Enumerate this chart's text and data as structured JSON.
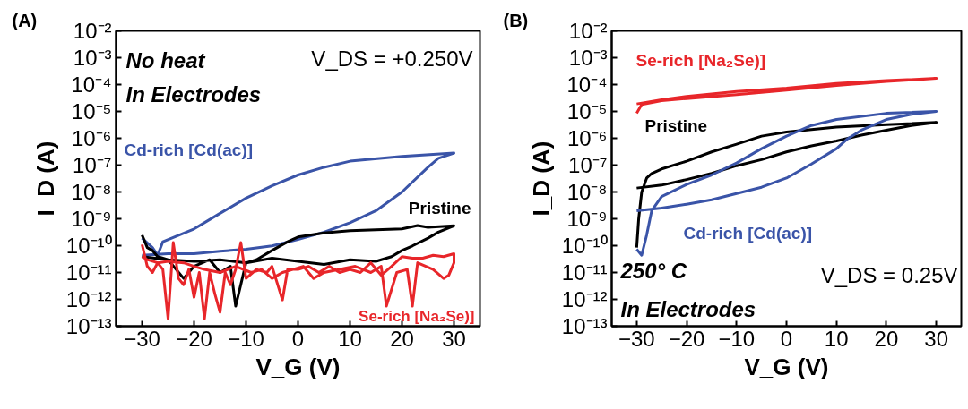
{
  "chart_data": [
    {
      "type": "line",
      "xlabel": "V_G (V)",
      "ylabel": "I_D (A)",
      "log": "y",
      "grid": false,
      "legend": false,
      "xlim": [
        -35,
        35
      ],
      "xticks": [
        -30,
        -20,
        -10,
        0,
        10,
        20,
        30
      ],
      "ylim": [
        1e-13,
        0.01
      ],
      "yticks": [
        {
          "value": 0.01,
          "label": "10⁻²"
        },
        {
          "value": 0.001,
          "label": "10⁻³"
        },
        {
          "value": 0.0001,
          "label": "10⁻⁴"
        },
        {
          "value": 1e-05,
          "label": "10⁻⁵"
        },
        {
          "value": 1e-06,
          "label": "10⁻⁶"
        },
        {
          "value": 1e-07,
          "label": "10⁻⁷"
        },
        {
          "value": 1e-08,
          "label": "10⁻⁸"
        },
        {
          "value": 1e-09,
          "label": "10⁻⁹"
        },
        {
          "value": 1e-10,
          "label": "10⁻¹⁰"
        },
        {
          "value": 1e-11,
          "label": "10⁻¹¹"
        },
        {
          "value": 1e-12,
          "label": "10⁻¹²"
        },
        {
          "value": 1e-13,
          "label": "10⁻¹³"
        }
      ],
      "annotations": [
        "(A)",
        "No heat",
        "In Electrodes",
        "V_DS = +0.250V"
      ],
      "series": [
        {
          "name": "Cd-rich [Cd(ac)]",
          "color": "#3a54a8",
          "x": [
            -30,
            -28,
            -27,
            -26,
            -20,
            -15,
            -10,
            -5,
            0,
            5,
            10,
            20,
            30,
            27,
            25,
            20,
            15,
            10,
            5,
            0,
            -5,
            -10,
            -15,
            -20,
            -25,
            -30
          ],
          "values": [
            1.9e-10,
            8.5e-11,
            4.4e-11,
            1.4e-10,
            4.2e-10,
            1.6e-09,
            5.9e-09,
            1.7e-08,
            4.3e-08,
            8.3e-08,
            1.4e-07,
            2.1e-07,
            2.8e-07,
            1.8e-07,
            8.3e-08,
            1e-08,
            2e-09,
            7.1e-10,
            3.2e-10,
            1.7e-10,
            9.8e-11,
            7.4e-11,
            6.2e-11,
            5e-11,
            5e-11,
            4.4e-11
          ]
        },
        {
          "name": "Pristine",
          "color": "#000000",
          "x": [
            -30,
            -29,
            -28,
            -27,
            -25,
            -22,
            -20,
            -17,
            -15,
            -13,
            -12,
            -10,
            -8,
            -5,
            -2,
            0,
            5,
            10,
            15,
            20,
            23,
            25,
            30,
            27,
            25,
            22,
            20,
            18,
            15,
            10,
            5,
            0,
            -5,
            -10,
            -15,
            -20,
            -25,
            -30
          ],
          "values": [
            2.5e-10,
            8.5e-11,
            6.6e-11,
            3.9e-11,
            3e-11,
            6e-12,
            1.7e-11,
            3e-11,
            1e-11,
            1.7e-11,
            5.6e-13,
            2.3e-11,
            3e-11,
            6.6e-11,
            1.4e-10,
            2.1e-10,
            3e-10,
            3.6e-10,
            3.9e-10,
            4.2e-10,
            5.6e-10,
            4.8e-10,
            5.5e-10,
            3.2e-10,
            1.9e-10,
            9.8e-11,
            6.6e-11,
            3.9e-11,
            2.6e-11,
            3e-11,
            2e-11,
            2.6e-11,
            3.4e-11,
            2.3e-11,
            3e-11,
            2.6e-11,
            3e-11,
            3.9e-11
          ]
        },
        {
          "name": "Se-rich [Na₂Se)]",
          "color": "#e8262a",
          "x": [
            -30,
            -29,
            -28,
            -27,
            -26,
            -25,
            -24,
            -23,
            -22,
            -21,
            -20,
            -19,
            -18,
            -17,
            -16,
            -15,
            -14,
            -13,
            -12,
            -11,
            -10,
            -8,
            -6,
            -5,
            -3,
            -2,
            0,
            2,
            4,
            6,
            8,
            10,
            12,
            14,
            16,
            18,
            20,
            22,
            24,
            26,
            28,
            30,
            30,
            29,
            28,
            26,
            23,
            22,
            21,
            19,
            17,
            16,
            14,
            11,
            8,
            5,
            3,
            1,
            -1,
            -3,
            -5,
            -7,
            -9,
            -12,
            -15,
            -18,
            -20,
            -22,
            -25,
            -27,
            -29,
            -30
          ],
          "values": [
            1.1e-10,
            1.7e-11,
            1e-11,
            2.3e-11,
            1.3e-11,
            1.9e-13,
            1.3e-10,
            6e-12,
            3.5e-12,
            1.3e-11,
            1.2e-12,
            1e-11,
            1.9e-13,
            1e-11,
            1.6e-12,
            3.3e-13,
            1e-11,
            3.5e-12,
            1.3e-11,
            1.3e-10,
            6e-12,
            1.3e-11,
            1e-11,
            1.7e-11,
            9.5e-13,
            1.3e-11,
            1.3e-11,
            1.7e-11,
            1e-11,
            1.7e-11,
            1e-11,
            1.3e-11,
            1e-11,
            2.3e-11,
            7.9e-12,
            1.7e-11,
            3.9e-11,
            3.4e-11,
            3.4e-11,
            4.4e-11,
            3.9e-11,
            5e-11,
            2.3e-11,
            7.9e-12,
            6e-12,
            1.3e-11,
            2.3e-11,
            5.6e-13,
            1.3e-11,
            1e-11,
            5.6e-13,
            1.7e-11,
            1e-11,
            1.7e-11,
            1.3e-11,
            1e-11,
            6e-12,
            1.7e-11,
            1.3e-11,
            1e-11,
            6e-12,
            1.3e-11,
            1e-11,
            1.7e-11,
            1e-11,
            1.3e-11,
            1.7e-11,
            2.3e-11,
            2.6e-11,
            2.3e-11,
            3e-11,
            3.9e-11
          ]
        }
      ]
    },
    {
      "type": "line",
      "xlabel": "V_G (V)",
      "ylabel": "I_D (A)",
      "log": "y",
      "grid": false,
      "legend": false,
      "xlim": [
        -35,
        35
      ],
      "xticks": [
        -30,
        -20,
        -10,
        0,
        10,
        20,
        30
      ],
      "ylim": [
        1e-13,
        0.01
      ],
      "yticks": [
        {
          "value": 0.01,
          "label": "10⁻²"
        },
        {
          "value": 0.001,
          "label": "10⁻³"
        },
        {
          "value": 0.0001,
          "label": "10⁻⁴"
        },
        {
          "value": 1e-05,
          "label": "10⁻⁵"
        },
        {
          "value": 1e-06,
          "label": "10⁻⁶"
        },
        {
          "value": 1e-07,
          "label": "10⁻⁷"
        },
        {
          "value": 1e-08,
          "label": "10⁻⁸"
        },
        {
          "value": 1e-09,
          "label": "10⁻⁹"
        },
        {
          "value": 1e-10,
          "label": "10⁻¹⁰"
        },
        {
          "value": 1e-11,
          "label": "10⁻¹¹"
        },
        {
          "value": 1e-12,
          "label": "10⁻¹²"
        },
        {
          "value": 1e-13,
          "label": "10⁻¹³"
        }
      ],
      "annotations": [
        "(B)",
        "250° C",
        "In Electrodes",
        "V_DS = 0.25V"
      ],
      "series": [
        {
          "name": "Se-rich [Na₂Se)]",
          "color": "#e8262a",
          "x": [
            -30,
            -29,
            -25,
            -20,
            -10,
            0,
            10,
            20,
            30,
            20,
            10,
            0,
            -10,
            -20,
            -25,
            -30
          ],
          "values": [
            8.5e-06,
            1.8e-05,
            2.5e-05,
            3e-05,
            4.2e-05,
            6.2e-05,
            9.3e-05,
            0.00013,
            0.00017,
            0.00014,
            0.00011,
            7.4e-05,
            5.5e-05,
            3.6e-05,
            2.7e-05,
            1.9e-05
          ]
        },
        {
          "name": "Pristine",
          "color": "#000000",
          "x": [
            -30,
            -29.6,
            -29,
            -28,
            -27,
            -25,
            -20,
            -15,
            -10,
            -5,
            0,
            10,
            20,
            30,
            25,
            20,
            15,
            10,
            5,
            0,
            -5,
            -10,
            -15,
            -20,
            -25,
            -30
          ],
          "values": [
            8.5e-11,
            1e-09,
            1e-08,
            3.3e-08,
            4.9e-08,
            7.2e-08,
            1.4e-07,
            3.1e-07,
            6e-07,
            1.2e-06,
            1.7e-06,
            2.6e-06,
            3.2e-06,
            3.9e-06,
            3e-06,
            2e-06,
            1.3e-06,
            7.9e-07,
            5.2e-07,
            3.1e-07,
            1.6e-07,
            9.5e-08,
            4.9e-08,
            2.9e-08,
            1.8e-08,
            1.4e-08
          ]
        },
        {
          "name": "Cd-rich [Cd(ac)]",
          "color": "#3a54a8",
          "x": [
            -30,
            -29,
            -28,
            -27,
            -25,
            -20,
            -15,
            -10,
            -5,
            0,
            5,
            10,
            20,
            30,
            25,
            20,
            15,
            12,
            10,
            5,
            0,
            -5,
            -10,
            -15,
            -20,
            -25,
            -30
          ],
          "values": [
            7.4e-11,
            4.4e-11,
            2.5e-10,
            2e-09,
            6.8e-09,
            1.9e-08,
            4.3e-08,
            1.2e-07,
            4.1e-07,
            1.2e-06,
            3e-06,
            5e-06,
            8.5e-06,
            1e-05,
            7.8e-06,
            5e-06,
            2e-06,
            8.9e-07,
            4.1e-07,
            1.1e-07,
            3.3e-08,
            1.5e-08,
            8.7e-09,
            5.1e-09,
            3.5e-09,
            2.5e-09,
            2e-09
          ]
        }
      ]
    }
  ]
}
